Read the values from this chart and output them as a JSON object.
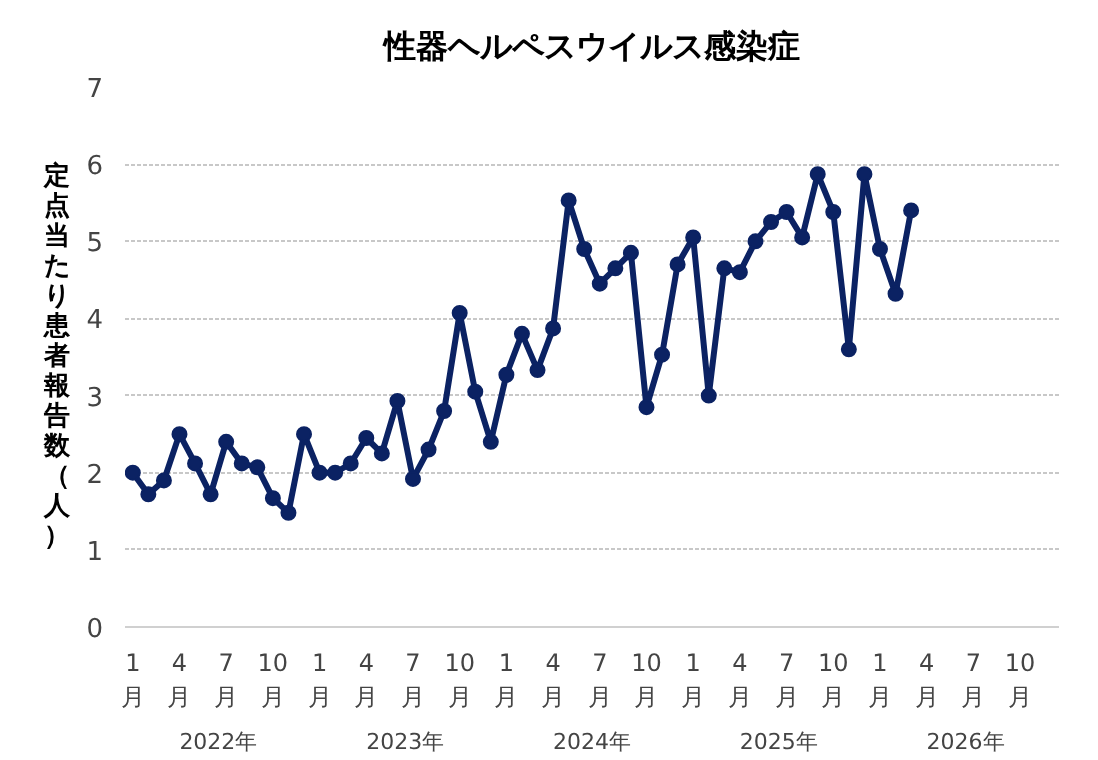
{
  "chart_data": {
    "type": "line",
    "title": "性器ヘルペスウイルス感染症",
    "ylabel": "定点当たり患者報告数（人）",
    "categories": [
      "1\n月",
      null,
      null,
      "4\n月",
      null,
      null,
      "7\n月",
      null,
      null,
      "10\n月",
      null,
      null,
      "1\n月",
      null,
      null,
      "4\n月",
      null,
      null,
      "7\n月",
      null,
      null,
      "10\n月",
      null,
      null,
      "1\n月",
      null,
      null,
      "4\n月",
      null,
      null,
      "7\n月",
      null,
      null,
      "10\n月",
      null,
      null,
      "1\n月",
      null,
      null,
      "4\n月",
      null,
      null,
      "7\n月",
      null,
      null,
      "10\n月",
      null,
      null,
      "1\n月",
      null,
      null,
      "4\n月",
      null,
      null,
      "7\n月",
      null,
      null,
      "10\n月",
      null,
      null
    ],
    "annotations": [
      "2022年",
      "2023年",
      "2024年",
      "2025年",
      "2026年"
    ],
    "series": [
      {
        "color": "#0b2263",
        "values": [
          2.0,
          1.72,
          1.9,
          2.5,
          2.12,
          1.72,
          2.4,
          2.12,
          2.07,
          1.67,
          1.48,
          2.5,
          2.0,
          2.0,
          2.12,
          2.45,
          2.25,
          2.93,
          1.92,
          2.3,
          2.8,
          4.07,
          3.05,
          2.4,
          3.27,
          3.8,
          3.33,
          3.87,
          5.53,
          4.9,
          4.45,
          4.65,
          4.85,
          2.85,
          3.53,
          4.7,
          5.05,
          3.0,
          4.65,
          4.6,
          5.0,
          5.25,
          5.38,
          5.05,
          5.87,
          5.38,
          3.6,
          5.87,
          4.9,
          4.32,
          5.4,
          null,
          null,
          null,
          null,
          null,
          null,
          null,
          null,
          null
        ]
      }
    ],
    "ylim": [
      0,
      7
    ],
    "yticks": [
      0,
      1,
      2,
      3,
      4,
      5,
      6,
      7
    ],
    "grid": "y",
    "marker": "circle",
    "line_style": "solid"
  }
}
